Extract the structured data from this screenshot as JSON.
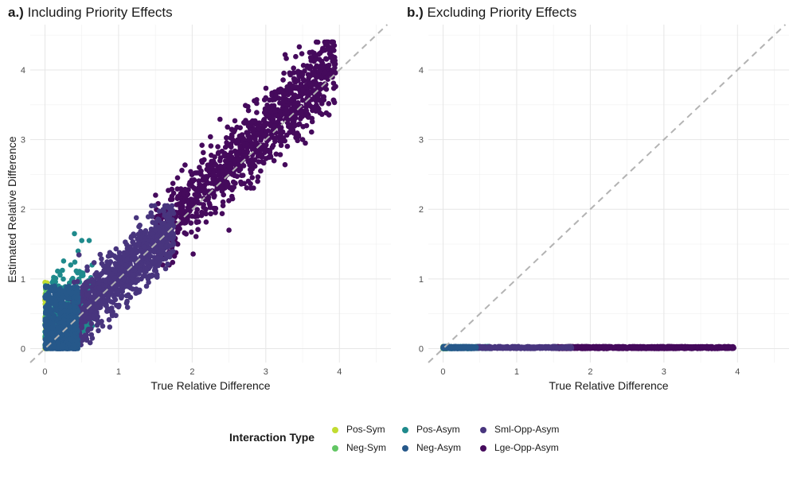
{
  "colors": {
    "Pos-Sym": "#c2dc31",
    "Neg-Sym": "#62c664",
    "Pos-Asym": "#1f8a8c",
    "Neg-Asym": "#26588a",
    "Sml-Opp-Asym": "#48357e",
    "Lge-Opp-Asym": "#450a5c"
  },
  "panels": {
    "a": {
      "prefix": "a.)",
      "title": "Including Priority Effects"
    },
    "b": {
      "prefix": "b.)",
      "title": "Excluding Priority Effects"
    }
  },
  "legend": {
    "title": "Interaction Type",
    "items": [
      "Pos-Sym",
      "Neg-Sym",
      "Pos-Asym",
      "Neg-Asym",
      "Sml-Opp-Asym",
      "Lge-Opp-Asym"
    ]
  },
  "chart_data": [
    {
      "type": "scatter",
      "title": "a.) Including Priority Effects",
      "xlabel": "True Relative Difference",
      "ylabel": "Estimated Relative Difference",
      "xlim": [
        -0.2,
        4.7
      ],
      "ylim": [
        -0.2,
        4.65
      ],
      "xticks": [
        0,
        1,
        2,
        3,
        4
      ],
      "yticks": [
        0,
        1,
        2,
        3,
        4
      ],
      "reference_line": "y = x",
      "grid": true,
      "series": [
        {
          "name": "Pos-Sym",
          "x_range": [
            0.0,
            0.05
          ],
          "y_range": [
            0.0,
            1.0
          ],
          "points": [
            [
              0.0,
              0.95
            ],
            [
              0.01,
              0.8
            ],
            [
              0.0,
              0.7
            ],
            [
              0.02,
              0.6
            ],
            [
              0.0,
              0.45
            ],
            [
              0.01,
              0.3
            ],
            [
              0.0,
              0.15
            ],
            [
              0.02,
              0.05
            ]
          ]
        },
        {
          "name": "Neg-Sym",
          "x_range": [
            0.0,
            0.05
          ],
          "y_range": [
            0.0,
            0.9
          ],
          "points": [
            [
              0.01,
              0.85
            ],
            [
              0.0,
              0.75
            ],
            [
              0.03,
              0.6
            ],
            [
              0.01,
              0.5
            ],
            [
              0.0,
              0.35
            ],
            [
              0.02,
              0.2
            ],
            [
              0.0,
              0.05
            ]
          ]
        },
        {
          "name": "Pos-Asym",
          "x_range": [
            0.0,
            0.65
          ],
          "y_range": [
            0.0,
            1.65
          ],
          "points": [
            [
              0.4,
              1.65
            ],
            [
              0.5,
              1.55
            ],
            [
              0.6,
              1.55
            ],
            [
              0.45,
              1.4
            ],
            [
              0.35,
              1.2
            ],
            [
              0.2,
              1.1
            ],
            [
              0.1,
              0.95
            ],
            [
              0.3,
              0.8
            ],
            [
              0.55,
              0.7
            ],
            [
              0.15,
              0.5
            ]
          ]
        },
        {
          "name": "Neg-Asym",
          "x_range": [
            0.0,
            0.45
          ],
          "y_range": [
            0.0,
            0.9
          ],
          "points": [
            [
              0.05,
              0.1
            ],
            [
              0.1,
              0.3
            ],
            [
              0.2,
              0.5
            ],
            [
              0.3,
              0.2
            ],
            [
              0.4,
              0.6
            ],
            [
              0.15,
              0.85
            ],
            [
              0.25,
              0.05
            ],
            [
              0.35,
              0.4
            ]
          ]
        },
        {
          "name": "Sml-Opp-Asym",
          "x_range": [
            0.35,
            1.75
          ],
          "y_range": [
            0.0,
            2.05
          ],
          "points": [
            [
              0.5,
              0.3
            ],
            [
              0.7,
              0.6
            ],
            [
              0.9,
              0.9
            ],
            [
              1.1,
              1.2
            ],
            [
              1.3,
              1.4
            ],
            [
              1.5,
              1.7
            ],
            [
              1.7,
              2.0
            ],
            [
              1.0,
              0.6
            ],
            [
              1.4,
              1.0
            ],
            [
              0.8,
              1.1
            ]
          ]
        },
        {
          "name": "Lge-Opp-Asym",
          "x_range": [
            1.5,
            3.95
          ],
          "y_range": [
            1.2,
            4.4
          ],
          "points": [
            [
              1.6,
              1.3
            ],
            [
              2.0,
              1.9
            ],
            [
              2.4,
              2.3
            ],
            [
              2.8,
              2.9
            ],
            [
              3.2,
              3.3
            ],
            [
              3.6,
              3.8
            ],
            [
              3.9,
              4.4
            ],
            [
              2.5,
              1.7
            ],
            [
              3.0,
              3.6
            ],
            [
              3.5,
              3.0
            ]
          ]
        }
      ]
    },
    {
      "type": "scatter",
      "title": "b.) Excluding Priority Effects",
      "xlabel": "True Relative Difference",
      "ylabel": "",
      "xlim": [
        -0.2,
        4.7
      ],
      "ylim": [
        -0.2,
        4.65
      ],
      "xticks": [
        0,
        1,
        2,
        3,
        4
      ],
      "yticks": [
        0,
        1,
        2,
        3,
        4
      ],
      "reference_line": "y = x",
      "grid": true,
      "series": [
        {
          "name": "Pos-Sym",
          "x_range": [
            0.0,
            0.05
          ],
          "y_range": [
            0.0,
            0.03
          ],
          "points": [
            [
              0.0,
              0.02
            ],
            [
              0.03,
              0.01
            ]
          ]
        },
        {
          "name": "Neg-Sym",
          "x_range": [
            0.0,
            0.05
          ],
          "y_range": [
            0.0,
            0.03
          ],
          "points": [
            [
              0.01,
              0.0
            ],
            [
              0.04,
              0.02
            ]
          ]
        },
        {
          "name": "Pos-Asym",
          "x_range": [
            0.0,
            0.65
          ],
          "y_range": [
            0.0,
            0.03
          ],
          "points": [
            [
              0.2,
              0.02
            ],
            [
              0.5,
              0.01
            ]
          ]
        },
        {
          "name": "Neg-Asym",
          "x_range": [
            0.0,
            0.45
          ],
          "y_range": [
            0.0,
            0.03
          ],
          "points": [
            [
              0.1,
              0.01
            ],
            [
              0.3,
              0.02
            ]
          ]
        },
        {
          "name": "Sml-Opp-Asym",
          "x_range": [
            0.35,
            1.75
          ],
          "y_range": [
            0.0,
            0.03
          ],
          "points": [
            [
              0.6,
              0.01
            ],
            [
              1.2,
              0.02
            ]
          ]
        },
        {
          "name": "Lge-Opp-Asym",
          "x_range": [
            1.5,
            3.95
          ],
          "y_range": [
            0.0,
            0.03
          ],
          "points": [
            [
              2.0,
              0.01
            ],
            [
              3.9,
              0.01
            ]
          ]
        }
      ]
    }
  ]
}
